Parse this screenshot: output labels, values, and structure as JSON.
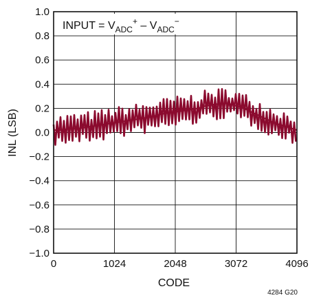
{
  "chart_data": {
    "type": "line",
    "title": "",
    "xlabel": "CODE",
    "ylabel": "INL (LSB)",
    "xlim": [
      0,
      4096
    ],
    "ylim": [
      -1.0,
      1.0
    ],
    "x_ticks": [
      0,
      1024,
      2048,
      3072,
      4096
    ],
    "x_tick_labels": [
      "0",
      "1024",
      "2048",
      "3072",
      "4096"
    ],
    "y_ticks": [
      1.0,
      0.8,
      0.6,
      0.4,
      0.2,
      0.0,
      -0.2,
      -0.4,
      -0.6,
      -0.8,
      -1.0
    ],
    "y_tick_labels": [
      "1.0",
      "0.8",
      "0.6",
      "0.4",
      "0.2",
      "0.0",
      "−0.2",
      "−0.4",
      "−0.6",
      "−0.8",
      "−1.0"
    ],
    "grid": true,
    "annotation": {
      "parts": [
        "INPUT = V",
        "ADC",
        "+",
        " – V",
        "ADC",
        "−"
      ]
    },
    "figure_id": "4284 G20",
    "series": [
      {
        "color": "#8b0a2e",
        "x": [
          0,
          128,
          256,
          384,
          512,
          640,
          768,
          896,
          1024,
          1152,
          1280,
          1408,
          1536,
          1664,
          1792,
          1920,
          2048,
          2176,
          2304,
          2432,
          2560,
          2688,
          2816,
          2944,
          3072,
          3200,
          3328,
          3456,
          3584,
          3712,
          3840,
          3968,
          4096
        ],
        "y": [
          0.02,
          0.02,
          0.03,
          0.03,
          0.04,
          0.05,
          0.06,
          0.07,
          0.08,
          0.09,
          0.1,
          0.11,
          0.12,
          0.13,
          0.15,
          0.16,
          0.17,
          0.18,
          0.19,
          0.2,
          0.22,
          0.23,
          0.24,
          0.24,
          0.22,
          0.2,
          0.17,
          0.14,
          0.11,
          0.08,
          0.06,
          0.04,
          0.02
        ],
        "noise_band": 0.13
      }
    ]
  }
}
